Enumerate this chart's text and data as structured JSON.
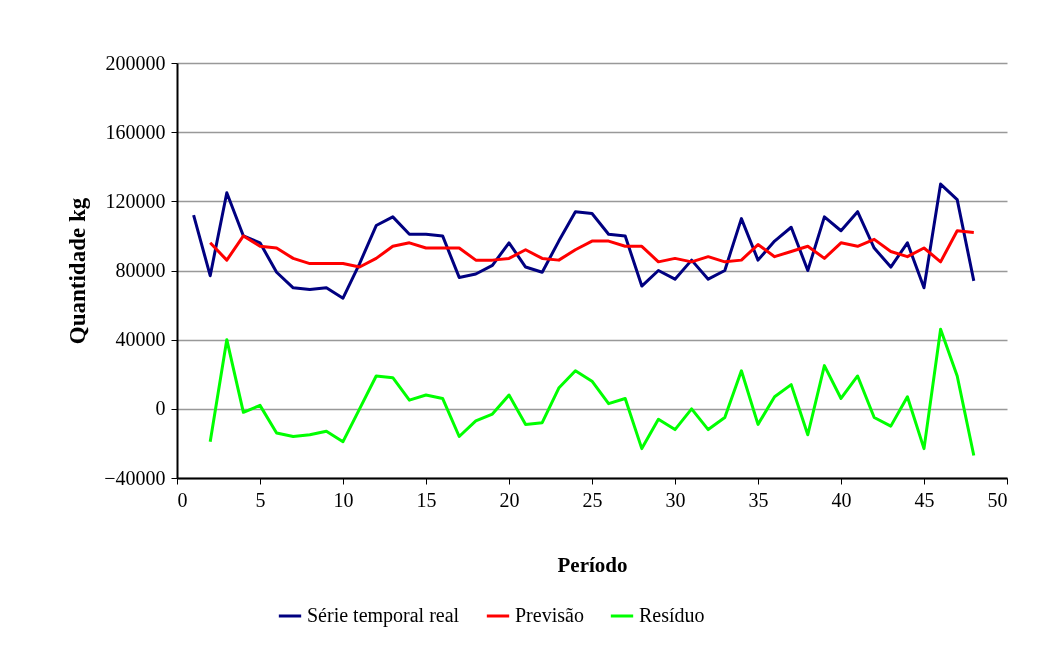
{
  "chart_data": {
    "type": "line",
    "xlabel": "Período",
    "ylabel": "Quantidade kg",
    "xlim": [
      0,
      50
    ],
    "xticks": [
      0,
      5,
      10,
      15,
      20,
      25,
      30,
      35,
      40,
      45,
      50
    ],
    "ylim": [
      -40000,
      200000
    ],
    "yticks": [
      -40000,
      0,
      40000,
      80000,
      120000,
      160000,
      200000
    ],
    "grid": "y",
    "legend": "bottom",
    "marker": "none",
    "line_style": "solid",
    "series": [
      {
        "name": "Série temporal real",
        "color": "#000080",
        "x": [
          1,
          2,
          3,
          4,
          5,
          6,
          7,
          8,
          9,
          10,
          11,
          12,
          13,
          14,
          15,
          16,
          17,
          18,
          19,
          20,
          21,
          22,
          23,
          24,
          25,
          26,
          27,
          28,
          29,
          30,
          31,
          32,
          33,
          34,
          35,
          36,
          37,
          38,
          39,
          40,
          41,
          42,
          43,
          44,
          45,
          46,
          47,
          48
        ],
        "values": [
          112000,
          77000,
          125000,
          100000,
          96000,
          79000,
          70000,
          69000,
          70000,
          64000,
          84000,
          106000,
          111000,
          101000,
          101000,
          100000,
          76000,
          78000,
          83000,
          96000,
          82000,
          79000,
          97000,
          114000,
          113000,
          101000,
          100000,
          71000,
          80000,
          75000,
          86000,
          75000,
          80000,
          110000,
          86000,
          97000,
          105000,
          80000,
          111000,
          103000,
          114000,
          93000,
          82000,
          96000,
          70000,
          130000,
          121000,
          74000
        ]
      },
      {
        "name": "Previsão",
        "color": "#ff0000",
        "x": [
          2,
          3,
          4,
          5,
          6,
          7,
          8,
          9,
          10,
          11,
          12,
          13,
          14,
          15,
          16,
          17,
          18,
          19,
          20,
          21,
          22,
          23,
          24,
          25,
          26,
          27,
          28,
          29,
          30,
          31,
          32,
          33,
          34,
          35,
          36,
          37,
          38,
          39,
          40,
          41,
          42,
          43,
          44,
          45,
          46,
          47,
          48
        ],
        "values": [
          96000,
          86000,
          100000,
          94000,
          93000,
          87000,
          84000,
          84000,
          84000,
          82000,
          87000,
          94000,
          96000,
          93000,
          93000,
          93000,
          86000,
          86000,
          87000,
          92000,
          87000,
          86000,
          92000,
          97000,
          97000,
          94000,
          94000,
          85000,
          87000,
          85000,
          88000,
          85000,
          86000,
          95000,
          88000,
          91000,
          94000,
          87000,
          96000,
          94000,
          98000,
          91000,
          88000,
          93000,
          85000,
          103000,
          102000
        ]
      },
      {
        "name": "Resíduo",
        "color": "#00ff00",
        "x": [
          2,
          3,
          4,
          5,
          6,
          7,
          8,
          9,
          10,
          11,
          12,
          13,
          14,
          15,
          16,
          17,
          18,
          19,
          20,
          21,
          22,
          23,
          24,
          25,
          26,
          27,
          28,
          29,
          30,
          31,
          32,
          33,
          34,
          35,
          36,
          37,
          38,
          39,
          40,
          41,
          42,
          43,
          44,
          45,
          46,
          47,
          48
        ],
        "values": [
          -19000,
          40000,
          -2000,
          2000,
          -14000,
          -16000,
          -15000,
          -13000,
          -19000,
          0,
          19000,
          18000,
          5000,
          8000,
          6000,
          -16000,
          -7000,
          -3000,
          8000,
          -9000,
          -8000,
          12000,
          22000,
          16000,
          3000,
          6000,
          -23000,
          -6000,
          -12000,
          0,
          -12000,
          -5000,
          22000,
          -9000,
          7000,
          14000,
          -15000,
          25000,
          6000,
          19000,
          -5000,
          -10000,
          7000,
          -23000,
          46000,
          19000,
          -27000
        ]
      }
    ]
  }
}
